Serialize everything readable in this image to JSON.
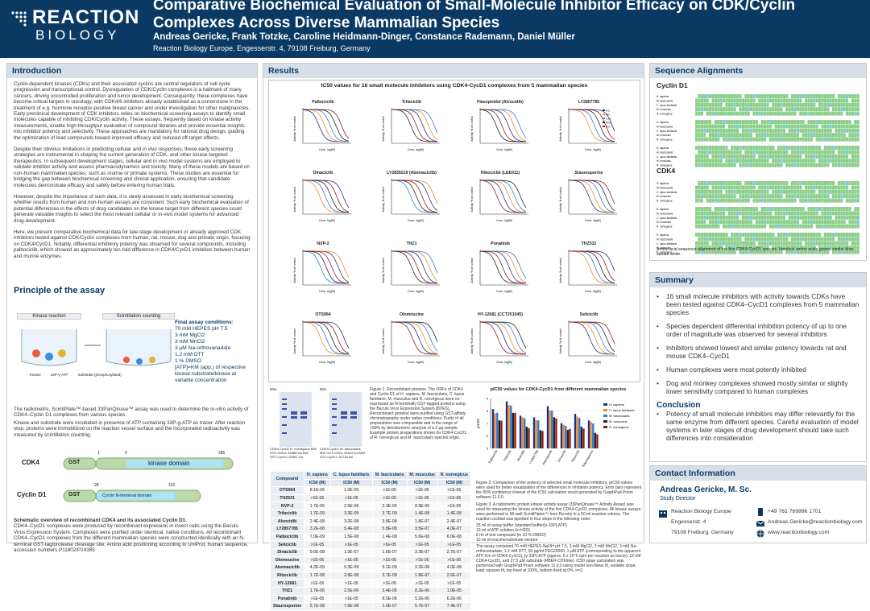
{
  "header": {
    "logo_top": "REACTION",
    "logo_bottom": "BIOLOGY",
    "title": "Comparative Biochemical Evaluation of Small-Molecule Inhibitor Efficacy on CDK/Cyclin Complexes Across Diverse Mammalian Species",
    "authors": "Andreas Gericke, Frank Totzke, Caroline Heidmann-Dinger, Constance Rademann, Daniel Müller",
    "affiliation": "Reaction Biology Europe, Engesserstr. 4, 79108 Freiburg, Germany"
  },
  "intro": {
    "heading": "Introduction",
    "p1": "Cyclin-dependent kinases (CDKs) and their associated cyclins are central regulators of cell cycle progression and transcriptional control. Dysregulation of CDK/Cyclin complexes is a hallmark of many cancers, driving uncontrolled proliferation and tumor development. Consequently, these complexes have become critical targets in oncology, with CDK4/6 inhibitors already established as a cornerstone in the treatment of e.g. hormone receptor-positive breast cancer and under investigation for other malignancies. Early preclinical development of CDK inhibitors relies on biochemical screening assays to identify small molecules capable of inhibiting CDK/Cyclin activity. These assays, frequently based on kinase activity measurements, enable high-throughput evaluation of compound libraries and provide essential insights into inhibitor potency and selectivity. These approaches are mandatory for rational drug design, guiding the optimization of lead compounds toward improved efficacy and reduced off-target effects.",
    "p2": "Despite their obvious limitations in predicting cellular and in vivo responses, these early screening strategies are instrumental in shaping the current generation of CDK- and other kinase-targeted therapeutics. In subsequent development stages, cellular and in vivo model systems are employed to validate inhibitor activity and assess pharmacodynamics and toxicity. Many of these models are based on non-human mammalian species, such as murine or primate systems. These studies are essential for bridging the gap between biochemical screening and clinical application, ensuring that candidate molecules demonstrate efficacy and safety before entering human trials.",
    "p3": "However, despite the importance of such data, it is rarely assessed in early biochemical screening whether results from human and non-human assays are consistent. Such early biochemical evaluation of potential differences in the effects of drug candidates on the kinase target from different species could generate valuable insights to select the most relevant cellular or in-vivo model systems for advanced drug-development.",
    "p4": "Here, we present comparative biochemical data for late-stage development or already approved CDK inhibitors tested against CDK/Cyclin complexes from human, rat, mouse, dog and primate origin, focusing on CDK4/CycD1. Notably, differential inhibitory potency was observed for several compounds, including palbociclib, which showed an approximately ten-fold difference in CDK4/CycD1 inhibition between human and murine enzymes."
  },
  "principle": {
    "heading": "Principle of the assay",
    "kinase_reaction": "Kinase reaction",
    "scint": "Scintillation counting",
    "legend_kinase": "Kinase",
    "legend_atp": "33P-γ-ATP",
    "legend_sub": "Substrate (phosphorylated)",
    "cond_title": "Final assay conditions:",
    "conditions": [
      "70 mM HEPES pH 7.5",
      "3 mM MgCl2",
      "3 mM MnCl2",
      "3 µM Na-orthovanadate",
      "1.2 mM DTT",
      "1 % DMSO",
      "[ATP]=KM (app.) of respective kinase:substrate/kinase at variable concentration"
    ],
    "text1": "The radiometric, ScintiPlate™-based 33PanQinase™ assay was used to determine the in-vitro activity of CDK4–Cyclin D1 complexes from various species.",
    "text2": "Kinase and substrate were incubated in presence of ATP containing 33P-g-ATP as tracer. After reaction stop, proteins were immobilized on the reaction vessel surface and the incorporated radioactivity was measured by scintillation counting.",
    "cdk4": "CDK4",
    "cycd1": "Cyclin D1",
    "gst": "GST",
    "kinase_domain": "kinase domain",
    "cyc_domain": "Cyclin N-terminal domain",
    "n1": "1",
    "n6": "6",
    "n285": "285",
    "n28": "28",
    "n152": "152",
    "schem_title": "Schematic overview of recombinant CDK4 and its associated Cyclin D1.",
    "schem_text": "CDK4–CycD1 complexes were produced by recombinant expression in insect cells using the Baculo Virus Expression System. Complexes were purified under identical, native conditions. All recombinant CDK4–CycD1 complexes from the different mammalian species were constructed identically with an N-terminal GST-tag/protease cleavage site. Amino acid positioning according to UniProt, human sequence, accession numbers P11802/P24385"
  },
  "results": {
    "heading": "Results",
    "chart_title": "IC50 values for 16 small molecule inhibitors using CDK4-CycD1 complexes from 5 mammalian species",
    "bar_title": "pIC50 values for CDK4-CycD1 from different mammalian species",
    "fig1": "Figure 1. Recombinant proteins. The ORFs of CDK4 and Cyclin D1 of H. sapiens, M. fascicularis, C. lupus familiaris, M. musculus and R. norvegicus were co-expressed as N-terminally GST-tagged proteins using the Baculo Virus Expression System (BVES). Recombinant proteins were purified using GST-affinity chromatography under native conditions. Purity of all preparations was comparable and in the range of >90% by densitometric analysis of a 2 µg sample. Example protein preparations shown for CDK4-CycD1 of R. norvegicus and M. fascicularis species origin.",
    "fig2": "Figure 2. Comparison of the potency of selected small molecule inhibitors. pIC50 values were used for better visualization of the differences in inhibition potency. Error bars represent the 95% confidence interval of the IC50 calculation result generated by GraphPad Prism software 11.0.0.",
    "fig3": "Figure 3. A radiometric protein kinase activity assay (33PanQinase™ Activity Assay) was used for measuring the kinase activity of the five CDK4-CycD1 complexes. All kinase assays were performed in 96-well ScintiPlates™ from Revvity in a 50 ml reaction volume. The reaction cocktail was pipetted in four steps in the following order:",
    "steps": [
      "25 ml of assay buffer (standard buffer/[γ-33P]-ATP)",
      "10 ml of ATP solution (in H2O)",
      "5 ml of test compound (in 10 % DMSO)",
      "10 ml of enzyme/substrate mixture"
    ],
    "fig3b": "The assay contained 70 mM HEPES-NaOH pH 7.5, 3 mM MgCl2, 3 mM MnCl2, 3 mM Na-orthovanadate, 1.2 mM DTT, 50 µg/ml PEG20000, 1 µM ATP (corresponding to the apparent ATP-Km of CDK4-CycD1), [γ-33P]-ATP (approx. 5 x 10^5 cpm per reaction as tracer), 12 nM CDK4-CycD1, and 27.5 µM substrate (RBER-CHKtide). IC50 value calculation was performed with GraphPad Prism software 11.0.0 using model non-linear fit, variable slope, least squares fit, top fixed at 100%, bottom fixed at 0%, n=2.",
    "gel_left": "CDK4-CycD1 R. norvegicus MW GST-CDK4: 61888 Da MW GST-CycD1: 62587 Da",
    "gel_right": "CDK4-CycD1 M. fascicularis MW GST-CDK4: 61633 Da MW GST-CycD1: 61718 Da",
    "gel_kda": "kDa"
  },
  "minicharts": [
    "Palbociclib",
    "Trilaciclib",
    "Flavopiridol (Alvocidib)",
    "LY2857785",
    "Dinaciclib",
    "LY2835219 (Abemaciclib)",
    "Ribociclib (LEE011)",
    "Staurosporine",
    "NVP-2",
    "THZ1",
    "Ponatinib",
    "THZ531",
    "OTS964",
    "Olomoucine",
    "HY-12681 (CCT251545)",
    "Seliciclib"
  ],
  "chart_common": {
    "ylabel": "Activity, % of control",
    "xlabel": "Conc. log(M)",
    "legend": [
      "H.s.",
      "M.f.",
      "C.l.f.",
      "M.m.",
      "R.n."
    ]
  },
  "table": {
    "head": [
      "Compound",
      "H. sapiens",
      "C. lupus familiaris",
      "M. fascicularis",
      "M. musculus",
      "R. norvegicus"
    ],
    "unit": "IC50 (M)",
    "rows": [
      [
        "OTS964",
        "8.1E-06",
        "1.0E-05",
        ">1E-05",
        ">1E-05",
        ">1E-05"
      ],
      [
        "THZ531",
        ">1E-05",
        ">1E-05",
        ">1E-05",
        ">1E-05",
        ">1E-05"
      ],
      [
        "NVP-2",
        "1.7E-06",
        "2.5E-06",
        "2.3E-06",
        "8.9E-06",
        ">1E-05"
      ],
      [
        "Trilaciclib",
        "1.7E-09",
        "3.3E-09",
        "3.7E-09",
        "1.4E-08",
        "1.4E-08"
      ],
      [
        "Alvocidib",
        "2.4E-08",
        "3.2E-08",
        "3.8E-08",
        "1.8E-07",
        "2.4E-07"
      ],
      [
        "LY2857785",
        "3.2E-08",
        "5.4E-08",
        "5.8E-08",
        "3.5E-07",
        "4.0E-07"
      ],
      [
        "Palbociclib",
        "7.0E-09",
        "1.5E-08",
        "1.4E-08",
        "5.6E-08",
        "6.0E-08"
      ],
      [
        "Seliciclib",
        ">1E-05",
        ">1E-05",
        ">1E-05",
        ">1E-05",
        ">1E-05"
      ],
      [
        "Dinaciclib",
        "9.6E-08",
        "1.3E-07",
        "1.6E-07",
        "3.3E-07",
        "2.7E-07"
      ],
      [
        "Olomoucine",
        ">1E-05",
        ">1E-05",
        ">1E-05",
        ">1E-05",
        ">1E-05"
      ],
      [
        "Abemaciclib",
        "4.2E-09",
        "9.3E-09",
        "9.1E-09",
        "3.2E-08",
        "4.0E-08"
      ],
      [
        "Ribociclib",
        "1.7E-08",
        "2.8E-08",
        "3.7E-08",
        "1.8E-07",
        "2.6E-07"
      ],
      [
        "HY-12681",
        ">1E-05",
        ">1E-05",
        ">1E-05",
        ">1E-05",
        ">1E-05"
      ],
      [
        "THZ1",
        "1.7E-06",
        "2.5E-06",
        "3.4E-06",
        "8.2E-06",
        "1.0E-05"
      ],
      [
        "Ponatinib",
        ">1E-05",
        ">1E-05",
        "8.5E-06",
        "5.2E-06",
        "6.2E-06"
      ],
      [
        "Staurosporine",
        "5.7E-08",
        "7.6E-08",
        "1.0E-07",
        "5.7E-07",
        "7.4E-07"
      ]
    ]
  },
  "chart_data": {
    "type": "bar",
    "title": "pIC50 values for CDK4-CycD1 from different mammalian species",
    "ylabel": "pIC50",
    "ylim": [
      5,
      9
    ],
    "categories": [
      "Palbociclib",
      "Trilaciclib",
      "Alvocidib",
      "LY2857785",
      "Abemaciclib",
      "Dinaciclib",
      "Ribociclib",
      "Staurosporine"
    ],
    "series": [
      {
        "name": "H. sapiens",
        "color": "#1f2f8a",
        "values": [
          8.15,
          8.77,
          7.62,
          7.49,
          8.38,
          7.02,
          7.77,
          7.24
        ]
      },
      {
        "name": "C. lupus familiaris",
        "color": "#f08a1c",
        "values": [
          7.82,
          8.48,
          7.49,
          7.27,
          8.03,
          6.89,
          7.55,
          7.12
        ]
      },
      {
        "name": "M. fascicularis",
        "color": "#2e7bd6",
        "values": [
          7.85,
          8.43,
          7.42,
          7.24,
          8.04,
          6.8,
          7.43,
          7.0
        ]
      },
      {
        "name": "M. musculus",
        "color": "#222222",
        "values": [
          7.25,
          7.85,
          6.74,
          6.46,
          7.49,
          6.48,
          6.74,
          6.24
        ]
      },
      {
        "name": "R. norvegicus",
        "color": "#8b1a1a",
        "values": [
          7.22,
          7.85,
          6.62,
          6.4,
          7.4,
          6.57,
          6.59,
          6.13
        ]
      }
    ]
  },
  "seq": {
    "heading": "Sequence Alignments",
    "cycd1": "Cyclin D1",
    "cdk4": "CDK4",
    "caption": "Amino acid sequence alignment of the five CDK4-CycD1 species. Identical amino acids green, similar blue, variant white.",
    "species": [
      "H. sapiens",
      "M. fascicularis",
      "C. lupus familiaris",
      "M. musculus",
      "R. norvegicus"
    ]
  },
  "summary": {
    "heading": "Summary",
    "items": [
      "16 small molecule inhibitors with activity towards CDKs have been tested against CDK4–CycD1 complexes from 5 mammalian species",
      "Species dependent differential inhibition potency of up to one order of magnitude was observed for several inhibitors",
      "Inhibitors showed lowest and similar potency towards rat and mouse CDK4–CycD1",
      "Human complexes were most potently inhibited",
      "Dog and monkey complexes showed mostly similar or slightly lower sensitivity compared to human complexes"
    ],
    "conclusion_h": "Conclusion",
    "conclusion": "Potency of small molecule inhibitors may differ relevantly for the same enzyme from different species. Careful evaluation of model systems in later stages of drug development should take such differences into consideration"
  },
  "contact": {
    "heading": "Contact Information",
    "name": "Andreas Gericke, M. Sc.",
    "role": "Study Director",
    "org": "Reaction Biology Europe",
    "street": "Engesserstr. 4",
    "city": "79108 Freiburg, Germany",
    "phone": "+49 761 769996 1701",
    "email": "Andreas.Gericke@reactionbiology.com",
    "web": "www.reactionbiology.com"
  }
}
